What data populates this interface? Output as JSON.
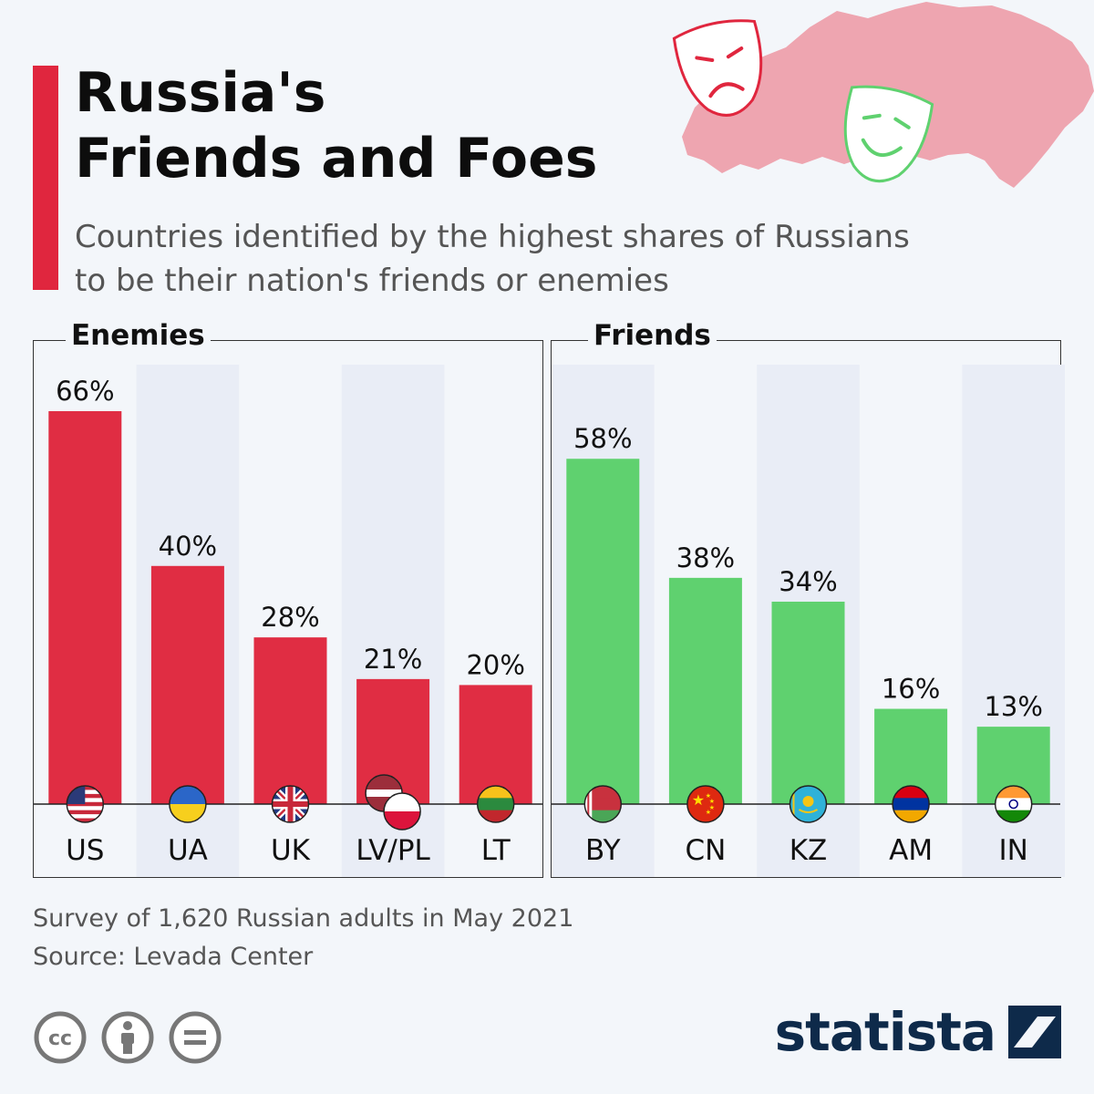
{
  "header": {
    "title_line1": "Russia's",
    "title_line2": "Friends and Foes",
    "subtitle_line1": "Countries identified by the highest shares of Russians",
    "subtitle_line2": "to be their nation's friends or enemies"
  },
  "colors": {
    "accent": "#e0263e",
    "enemies_bar": "#e02d43",
    "friends_bar": "#5fd16f",
    "stripe": "#e9edf6",
    "brand": "#0e2a4a"
  },
  "chart_data": [
    {
      "type": "bar",
      "title": "Enemies",
      "categories": [
        "US",
        "UA",
        "UK",
        "LV/PL",
        "LT"
      ],
      "values": [
        66,
        40,
        28,
        21,
        20
      ],
      "value_labels": [
        "66%",
        "40%",
        "28%",
        "21%",
        "20%"
      ],
      "flag_icons": [
        "us-flag-icon",
        "ua-flag-icon",
        "uk-flag-icon",
        "lv-pl-flag-icon",
        "lt-flag-icon"
      ],
      "ylim": [
        0,
        70
      ],
      "unit": "%",
      "color": "#e02d43"
    },
    {
      "type": "bar",
      "title": "Friends",
      "categories": [
        "BY",
        "CN",
        "KZ",
        "AM",
        "IN"
      ],
      "values": [
        58,
        38,
        34,
        16,
        13
      ],
      "value_labels": [
        "58%",
        "38%",
        "34%",
        "16%",
        "13%"
      ],
      "flag_icons": [
        "by-flag-icon",
        "cn-flag-icon",
        "kz-flag-icon",
        "am-flag-icon",
        "in-flag-icon"
      ],
      "ylim": [
        0,
        70
      ],
      "unit": "%",
      "color": "#5fd16f"
    }
  ],
  "footer": {
    "note": "Survey of 1,620 Russian adults in May 2021",
    "source": "Source: Levada Center"
  },
  "license_icons": [
    "cc-icon",
    "attribution-icon",
    "no-derivatives-icon"
  ],
  "brand": {
    "name": "statista"
  }
}
